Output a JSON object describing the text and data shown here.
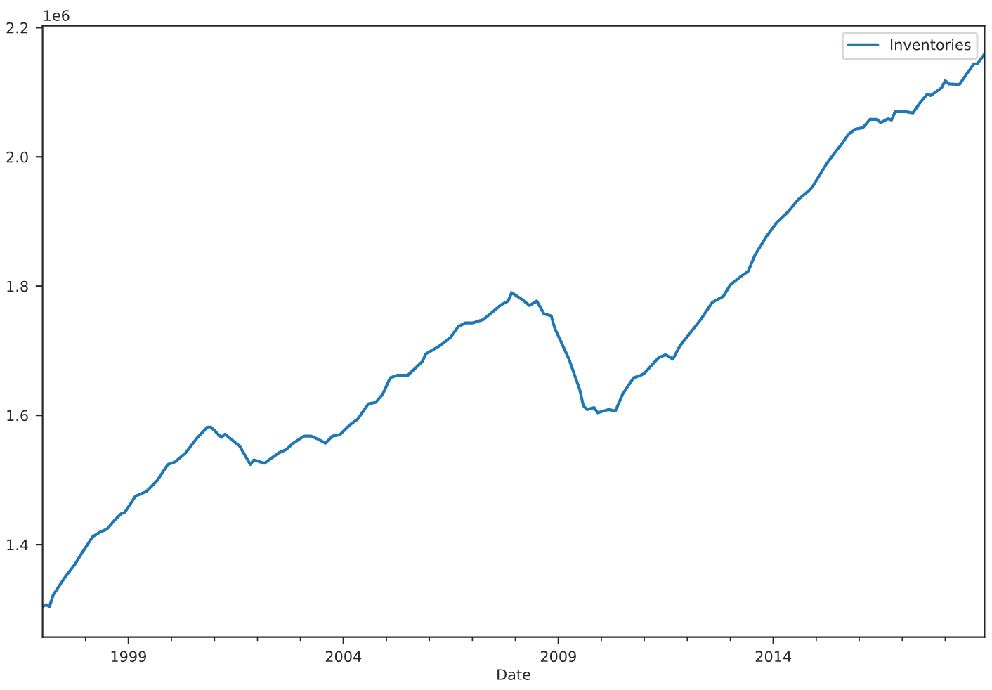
{
  "chart_data": {
    "type": "line",
    "xlabel": "Date",
    "annotations": [
      "1e6"
    ],
    "x": [
      "1997-01",
      "1997-02",
      "1997-03",
      "1997-04",
      "1997-07",
      "1997-10",
      "1997-12",
      "1998-03",
      "1998-05",
      "1998-07",
      "1998-09",
      "1998-11",
      "1998-12",
      "1999-03",
      "1999-06",
      "1999-09",
      "1999-12",
      "2000-02",
      "2000-05",
      "2000-08",
      "2000-11",
      "2000-12",
      "2001-03",
      "2001-04",
      "2001-07",
      "2001-08",
      "2001-11",
      "2001-12",
      "2002-03",
      "2002-07",
      "2002-09",
      "2002-11",
      "2003-02",
      "2003-04",
      "2003-06",
      "2003-08",
      "2003-10",
      "2003-12",
      "2004-03",
      "2004-05",
      "2004-08",
      "2004-10",
      "2004-12",
      "2005-02",
      "2005-04",
      "2005-07",
      "2005-11",
      "2005-12",
      "2006-04",
      "2006-07",
      "2006-09",
      "2006-11",
      "2007-01",
      "2007-04",
      "2007-06",
      "2007-09",
      "2007-11",
      "2007-12",
      "2008-03",
      "2008-05",
      "2008-07",
      "2008-09",
      "2008-11",
      "2008-12",
      "2009-04",
      "2009-07",
      "2009-08",
      "2009-09",
      "2009-11",
      "2009-12",
      "2010-03",
      "2010-05",
      "2010-07",
      "2010-10",
      "2010-12",
      "2011-01",
      "2011-05",
      "2011-07",
      "2011-09",
      "2011-11",
      "2012-02",
      "2012-05",
      "2012-08",
      "2012-11",
      "2013-01",
      "2013-04",
      "2013-06",
      "2013-08",
      "2013-11",
      "2014-02",
      "2014-05",
      "2014-08",
      "2014-11",
      "2014-12",
      "2015-04",
      "2015-06",
      "2015-08",
      "2015-10",
      "2015-12",
      "2016-02",
      "2016-04",
      "2016-06",
      "2016-07",
      "2016-09",
      "2016-10",
      "2016-11",
      "2017-02",
      "2017-04",
      "2017-06",
      "2017-08",
      "2017-09",
      "2017-12",
      "2018-01",
      "2018-02",
      "2018-05",
      "2018-07",
      "2018-09",
      "2018-10",
      "2018-12"
    ],
    "series": [
      {
        "name": "Inventories",
        "color": "#1f77b4",
        "values": [
          1.304,
          1.307,
          1.304,
          1.322,
          1.347,
          1.369,
          1.387,
          1.412,
          1.419,
          1.424,
          1.437,
          1.448,
          1.45,
          1.475,
          1.482,
          1.499,
          1.524,
          1.528,
          1.542,
          1.564,
          1.582,
          1.582,
          1.566,
          1.571,
          1.557,
          1.553,
          1.524,
          1.531,
          1.526,
          1.542,
          1.547,
          1.557,
          1.568,
          1.568,
          1.563,
          1.557,
          1.568,
          1.57,
          1.586,
          1.594,
          1.618,
          1.62,
          1.633,
          1.658,
          1.662,
          1.662,
          1.683,
          1.695,
          1.708,
          1.721,
          1.737,
          1.743,
          1.743,
          1.748,
          1.757,
          1.771,
          1.777,
          1.79,
          1.779,
          1.77,
          1.777,
          1.757,
          1.754,
          1.735,
          1.687,
          1.64,
          1.615,
          1.609,
          1.612,
          1.604,
          1.609,
          1.607,
          1.633,
          1.658,
          1.662,
          1.665,
          1.689,
          1.694,
          1.687,
          1.708,
          1.729,
          1.75,
          1.775,
          1.784,
          1.802,
          1.815,
          1.823,
          1.849,
          1.876,
          1.899,
          1.914,
          1.934,
          1.948,
          1.954,
          1.99,
          2.005,
          2.019,
          2.035,
          2.043,
          2.045,
          2.058,
          2.058,
          2.053,
          2.059,
          2.057,
          2.07,
          2.07,
          2.068,
          2.084,
          2.097,
          2.095,
          2.107,
          2.118,
          2.113,
          2.112,
          2.128,
          2.144,
          2.144,
          2.159
        ]
      }
    ],
    "xlim": [
      "1997-01",
      "2018-12"
    ],
    "xticks": [
      {
        "value": "1998-01",
        "label": null
      },
      {
        "value": "1999-01",
        "label": "1999"
      },
      {
        "value": "2000-01",
        "label": null
      },
      {
        "value": "2001-01",
        "label": null
      },
      {
        "value": "2002-01",
        "label": null
      },
      {
        "value": "2003-01",
        "label": null
      },
      {
        "value": "2004-01",
        "label": "2004"
      },
      {
        "value": "2005-01",
        "label": null
      },
      {
        "value": "2006-01",
        "label": null
      },
      {
        "value": "2007-01",
        "label": null
      },
      {
        "value": "2008-01",
        "label": null
      },
      {
        "value": "2009-01",
        "label": "2009"
      },
      {
        "value": "2010-01",
        "label": null
      },
      {
        "value": "2011-01",
        "label": null
      },
      {
        "value": "2012-01",
        "label": null
      },
      {
        "value": "2013-01",
        "label": null
      },
      {
        "value": "2014-01",
        "label": "2014"
      },
      {
        "value": "2015-01",
        "label": null
      },
      {
        "value": "2016-01",
        "label": null
      },
      {
        "value": "2017-01",
        "label": null
      },
      {
        "value": "2018-01",
        "label": null
      }
    ],
    "ylim": [
      1.257,
      2.203
    ],
    "yticks": [
      {
        "value": 1.4,
        "label": "1.4"
      },
      {
        "value": 1.6,
        "label": "1.6"
      },
      {
        "value": 1.8,
        "label": "1.8"
      },
      {
        "value": 2.0,
        "label": "2.0"
      },
      {
        "value": 2.2,
        "label": "2.2"
      }
    ],
    "grid": false,
    "legend": "top right"
  }
}
